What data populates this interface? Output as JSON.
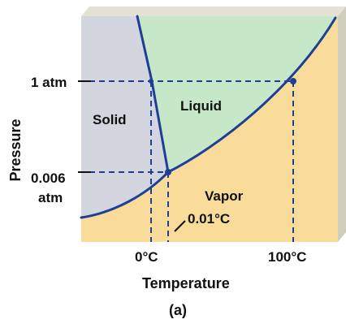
{
  "diagram": {
    "regions": {
      "solid": "Solid",
      "liquid": "Liquid",
      "vapor": "Vapor"
    },
    "pressure_levels": {
      "one_atm": "1 atm",
      "triple_point_line1": "0.006",
      "triple_point_line2": "atm"
    },
    "temperature_marks": {
      "zero_c": "0°C",
      "hundred_c": "100°C"
    },
    "triple_point_label": "0.01°C",
    "y_axis_label": "Pressure",
    "x_axis_label": "Temperature",
    "panel_label": "(a)"
  },
  "colors": {
    "solid_region": "#d3d6de",
    "liquid_region": "#c6e8c8",
    "vapor_region": "#f9dc9a",
    "curve": "#1f3f96",
    "side_face": "#cfcdbd",
    "top_face": "#e4e2d4",
    "text": "#111111"
  }
}
